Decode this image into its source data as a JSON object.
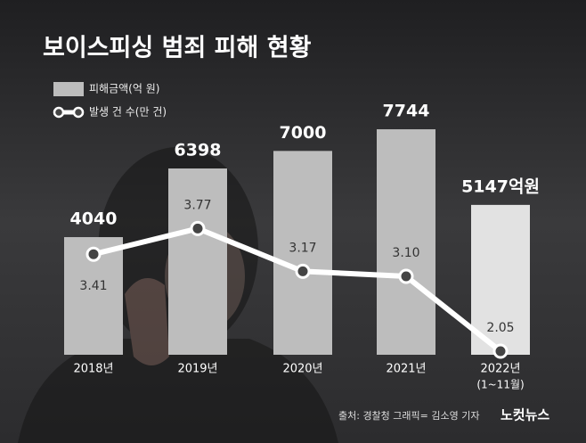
{
  "chart_data": {
    "type": "bar-line",
    "title": "보이스피싱 범죄 피해 현황",
    "categories": [
      "2018년",
      "2019년",
      "2020년",
      "2021년",
      "2022년"
    ],
    "category_notes": [
      null,
      null,
      null,
      null,
      "(1~11월)"
    ],
    "series": [
      {
        "name": "피해금액(억 원)",
        "type": "bar",
        "colors": [
          "#bdbdbd",
          "#bdbdbd",
          "#bdbdbd",
          "#bdbdbd",
          "#e2e2e2"
        ],
        "values": [
          4040,
          6398,
          7000,
          7744,
          5147
        ],
        "value_labels": [
          "4040",
          "6398",
          "7000",
          "7744",
          "5147억원"
        ]
      },
      {
        "name": "발생 건 수(만 건)",
        "type": "line",
        "axis": "y2",
        "color": "#ffffff",
        "values": [
          3.41,
          3.77,
          3.17,
          3.1,
          2.05
        ],
        "value_labels": [
          "3.41",
          "3.77",
          "3.17",
          "3.10",
          "2.05"
        ]
      }
    ],
    "ylim": [
      0,
      12000
    ],
    "y2lim": [
      2,
      6.9
    ],
    "source": "출처: 경찰청   그래픽= 김소영 기자",
    "brand": "노컷뉴스"
  }
}
